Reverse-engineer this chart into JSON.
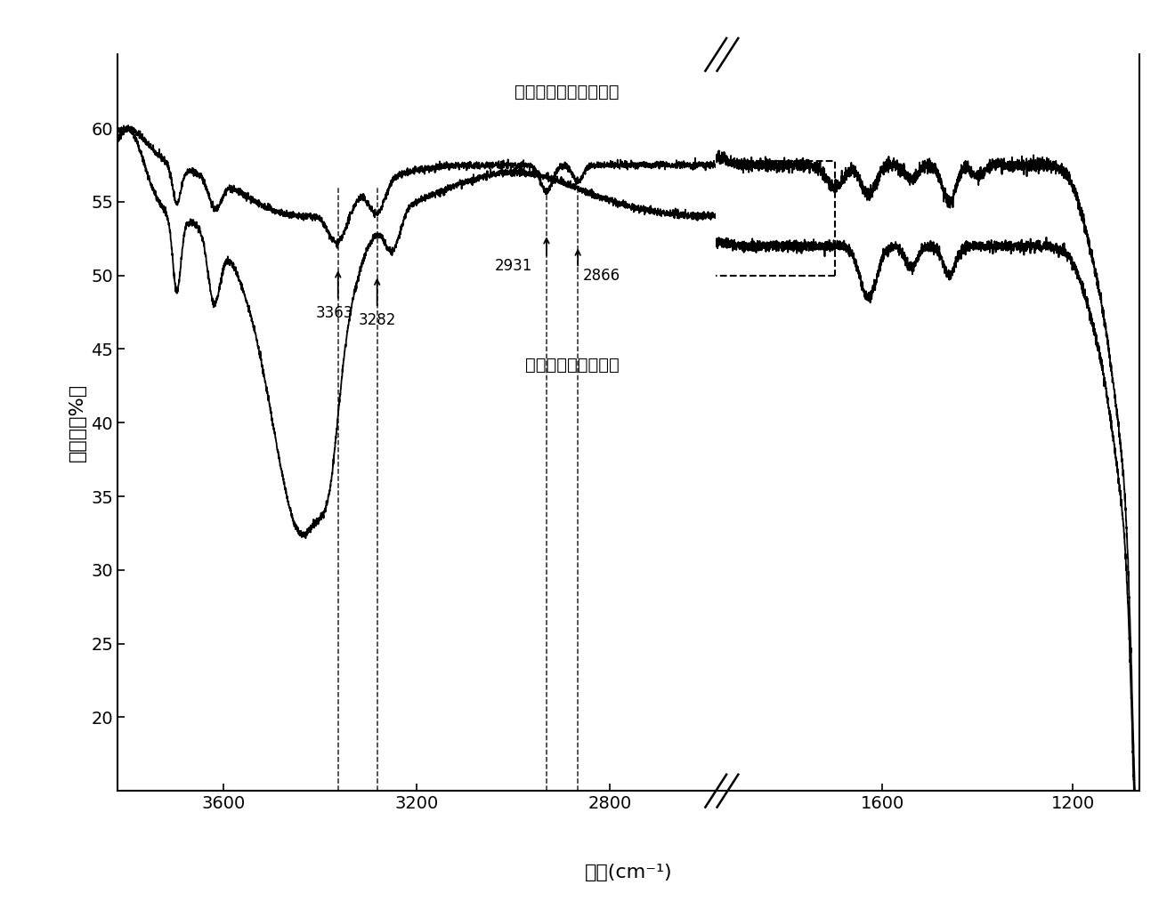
{
  "xlabel": "波数(cm⁻¹)",
  "ylabel_label": "透过率（%）",
  "label_modified": "改性后的埃洛石纳米管",
  "label_unmodified": "未改性埃洛石纳米管",
  "ylim": [
    15,
    65
  ],
  "yticks": [
    20,
    25,
    30,
    35,
    40,
    45,
    50,
    55,
    60
  ],
  "background_color": "#ffffff",
  "line_color": "#000000",
  "peaks": [
    3363,
    3282,
    2931,
    2866
  ],
  "peak_labels": [
    "3363",
    "3282",
    "2931",
    "2866"
  ]
}
